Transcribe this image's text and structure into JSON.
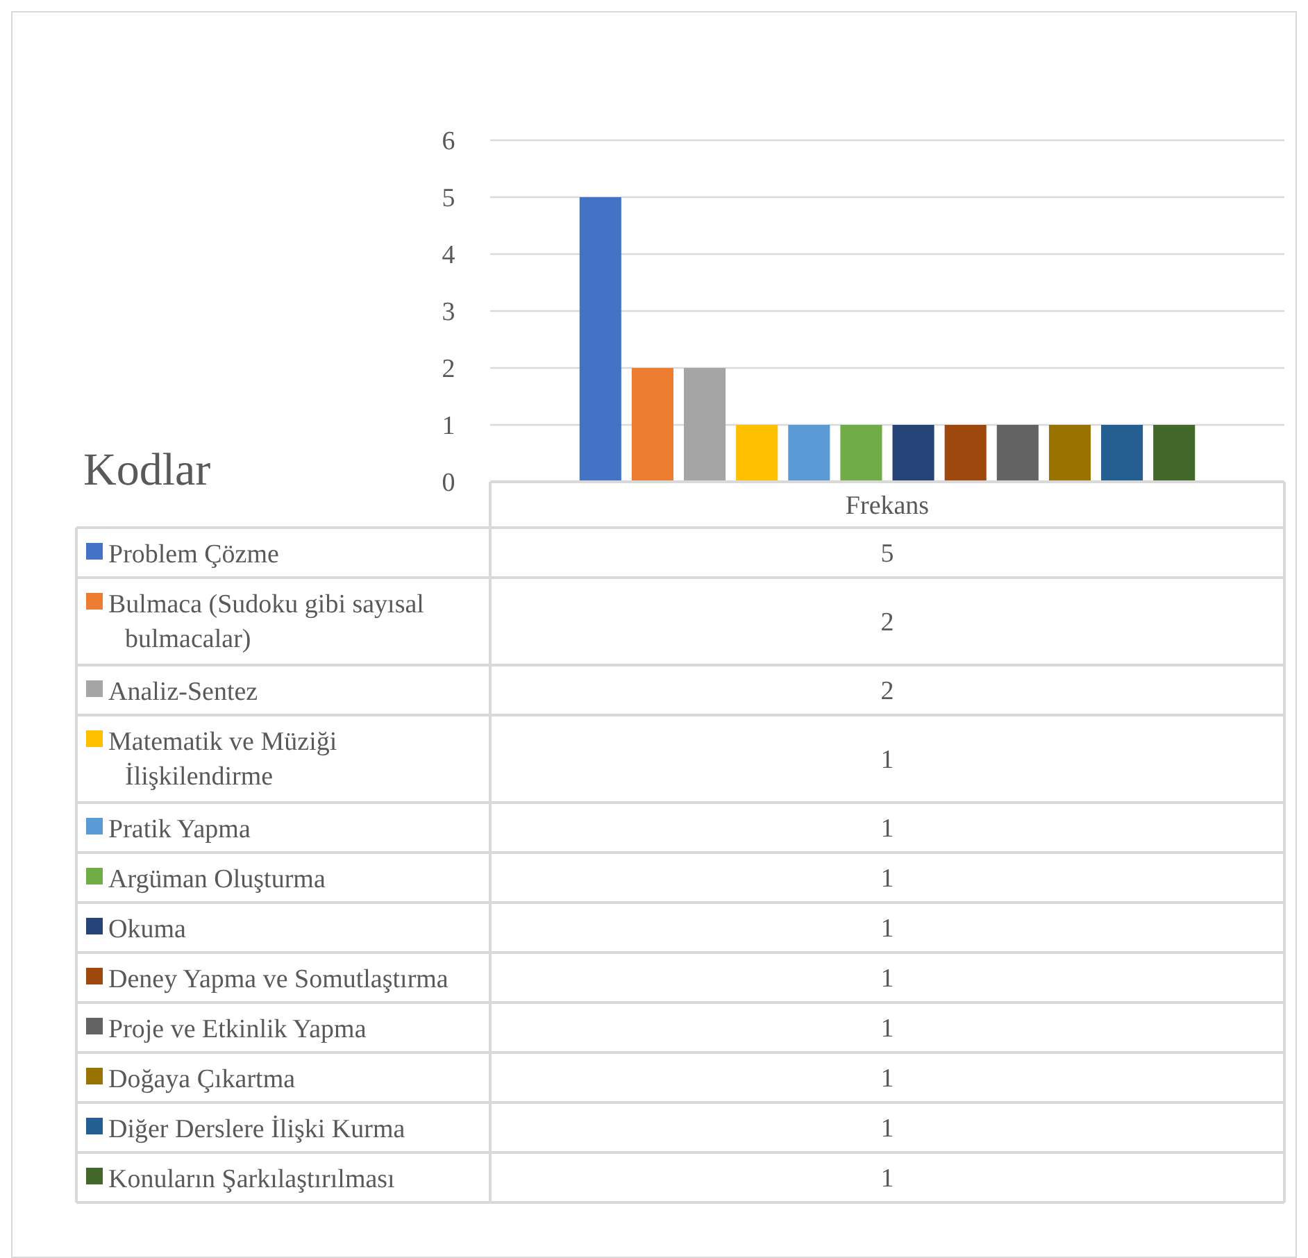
{
  "chart_data": [
    {
      "type": "bar",
      "title": "Kodlar",
      "categories": [
        "Frekans"
      ],
      "series": [
        {
          "name": "Problem Çözme",
          "color": "#4472c4",
          "values": [
            5
          ]
        },
        {
          "name": "Bulmaca (Sudoku gibi sayısal bulmacalar)",
          "color": "#ed7d31",
          "values": [
            2
          ]
        },
        {
          "name": "Analiz-Sentez",
          "color": "#a5a5a5",
          "values": [
            2
          ]
        },
        {
          "name": "Matematik ve Müziği İlişkilendirme",
          "color": "#ffc000",
          "values": [
            1
          ]
        },
        {
          "name": "Pratik Yapma",
          "color": "#5b9bd5",
          "values": [
            1
          ]
        },
        {
          "name": "Argüman Oluşturma",
          "color": "#70ad47",
          "values": [
            1
          ]
        },
        {
          "name": "Okuma",
          "color": "#264478",
          "values": [
            1
          ]
        },
        {
          "name": "Deney Yapma ve Somutlaştırma",
          "color": "#9e480e",
          "values": [
            1
          ]
        },
        {
          "name": "Proje ve Etkinlik Yapma",
          "color": "#636363",
          "values": [
            1
          ]
        },
        {
          "name": "Doğaya Çıkartma",
          "color": "#997300",
          "values": [
            1
          ]
        },
        {
          "name": "Diğer Derslere İlişki Kurma",
          "color": "#255e91",
          "values": [
            1
          ]
        },
        {
          "name": "Konuların Şarkılaştırılması",
          "color": "#43682b",
          "values": [
            1
          ]
        }
      ],
      "ylim": [
        0,
        6
      ],
      "yticks": [
        0,
        1,
        2,
        3,
        4,
        5,
        6
      ],
      "grid": "y",
      "legend": "left"
    },
    {
      "type": "other",
      "annotations": [
        "5",
        "2",
        "2",
        "1",
        "1",
        "1",
        "1",
        "1",
        "1",
        "1",
        "1",
        "1"
      ]
    }
  ]
}
